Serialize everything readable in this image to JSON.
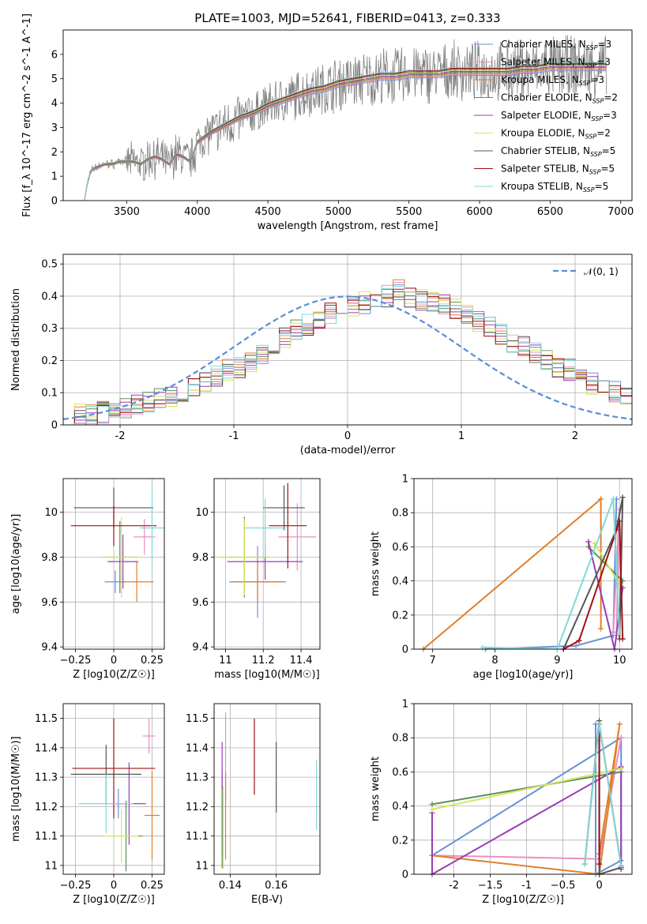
{
  "figure_title": "PLATE=1003, MJD=52641, FIBERID=0413, z=0.333",
  "chart_data": [
    {
      "id": "spectrum",
      "type": "line",
      "title": "PLATE=1003, MJD=52641, FIBERID=0413, z=0.333",
      "xlabel": "wavelength [Angstrom, rest frame]",
      "ylabel": "Flux [f_λ 10^-17 erg cm^-2 s^-1 A^-1]",
      "xlim": [
        3050,
        7080
      ],
      "ylim": [
        0,
        7
      ],
      "xticks": [
        3500,
        4000,
        4500,
        5000,
        5500,
        6000,
        6500,
        7000
      ],
      "yticks": [
        0,
        1,
        2,
        3,
        4,
        5,
        6
      ],
      "grid": false,
      "legend_position": "right",
      "data_color": "#808080",
      "continuum_x": [
        3200,
        3230,
        3260,
        3300,
        3350,
        3400,
        3450,
        3500,
        3550,
        3600,
        3650,
        3700,
        3750,
        3800,
        3850,
        3900,
        3950,
        4000,
        4100,
        4200,
        4300,
        4400,
        4500,
        4600,
        4700,
        4800,
        4900,
        5000,
        5100,
        5200,
        5300,
        5400,
        5500,
        5600,
        5700,
        5800,
        5900,
        6000,
        6100,
        6200,
        6300,
        6400,
        6500,
        6600,
        6700,
        6800,
        6900
      ],
      "continuum_y": [
        0.0,
        1.0,
        1.3,
        1.4,
        1.5,
        1.5,
        1.6,
        1.6,
        1.6,
        1.5,
        1.7,
        1.8,
        1.7,
        1.5,
        1.9,
        1.8,
        1.6,
        2.4,
        2.8,
        3.1,
        3.4,
        3.6,
        3.9,
        4.1,
        4.3,
        4.5,
        4.6,
        4.8,
        4.9,
        5.0,
        5.1,
        5.1,
        5.2,
        5.2,
        5.2,
        5.3,
        5.3,
        5.3,
        5.3,
        5.3,
        5.4,
        5.4,
        5.5,
        5.5,
        5.5,
        5.5,
        5.5
      ],
      "series": [
        {
          "name": "Chabrier MILES, N_SSP=3",
          "color": "#6a8fd5"
        },
        {
          "name": "Salpeter MILES, N_SSP=3",
          "color": "#e88fc4"
        },
        {
          "name": "Kroupa MILES, N_SSP=3",
          "color": "#e07f2b"
        },
        {
          "name": "Chabrier ELODIE, N_SSP=2",
          "color": "#5a8f5a"
        },
        {
          "name": "Salpeter ELODIE, N_SSP=3",
          "color": "#9b3db3"
        },
        {
          "name": "Kroupa ELODIE, N_SSP=2",
          "color": "#d6e55a"
        },
        {
          "name": "Chabrier STELIB, N_SSP=5",
          "color": "#555555"
        },
        {
          "name": "Salpeter STELIB, N_SSP=5",
          "color": "#a01010"
        },
        {
          "name": "Kroupa STELIB, N_SSP=5",
          "color": "#80d8d8"
        }
      ]
    },
    {
      "id": "residuals",
      "type": "line",
      "xlabel": "(data-model)/error",
      "ylabel": "Normed distribution",
      "xlim": [
        -2.5,
        2.5
      ],
      "ylim": [
        0,
        0.53
      ],
      "xticks": [
        -2,
        -1,
        0,
        1,
        2
      ],
      "yticks": [
        0.0,
        0.1,
        0.2,
        0.3,
        0.4,
        0.5
      ],
      "grid": true,
      "legend_position": "top-right",
      "normal_label": "𝒩(0, 1)",
      "normal_color": "#5b8dd6",
      "bin_edges_start": -2.5,
      "bin_width": 0.1,
      "hist_values": [
        0.02,
        0.03,
        0.03,
        0.04,
        0.04,
        0.05,
        0.06,
        0.07,
        0.08,
        0.09,
        0.1,
        0.11,
        0.13,
        0.15,
        0.17,
        0.18,
        0.2,
        0.22,
        0.25,
        0.27,
        0.3,
        0.31,
        0.33,
        0.35,
        0.36,
        0.37,
        0.38,
        0.39,
        0.4,
        0.42,
        0.4,
        0.39,
        0.38,
        0.37,
        0.36,
        0.34,
        0.32,
        0.3,
        0.28,
        0.26,
        0.24,
        0.22,
        0.2,
        0.18,
        0.17,
        0.15,
        0.13,
        0.12,
        0.1,
        0.09
      ]
    },
    {
      "id": "age_vs_Z",
      "type": "scatter",
      "xlabel": "Z [log10(Z/Z☉)]",
      "ylabel": "age [log10(age/yr)]",
      "xlim": [
        -0.33,
        0.33
      ],
      "ylim": [
        9.39,
        10.15
      ],
      "xticks": [
        -0.25,
        0.0,
        0.25
      ],
      "yticks": [
        9.4,
        9.6,
        9.8,
        10.0
      ],
      "grid": true,
      "points": [
        {
          "x": 0.01,
          "y": 9.69,
          "xerr": 0.07,
          "yerr": 0.05,
          "color": "#6a8fd5"
        },
        {
          "x": 0.2,
          "y": 9.89,
          "xerr": 0.07,
          "yerr": 0.08,
          "color": "#e88fc4"
        },
        {
          "x": 0.15,
          "y": 9.69,
          "xerr": 0.11,
          "yerr": 0.09,
          "color": "#e07f2b"
        },
        {
          "x": 0.04,
          "y": 9.8,
          "xerr": 0.12,
          "yerr": 0.16,
          "color": "#5a8f5a"
        },
        {
          "x": 0.06,
          "y": 9.78,
          "xerr": 0.1,
          "yerr": 0.12,
          "color": "#9b3db3"
        },
        {
          "x": 0.05,
          "y": 9.8,
          "xerr": 0.13,
          "yerr": 0.18,
          "color": "#d6e55a"
        },
        {
          "x": 0.0,
          "y": 10.02,
          "xerr": 0.26,
          "yerr": 0.09,
          "color": "#555555"
        },
        {
          "x": 0.0,
          "y": 9.94,
          "xerr": 0.28,
          "yerr": 0.09,
          "color": "#a01010"
        },
        {
          "x": 0.25,
          "y": 9.93,
          "xerr": 0.08,
          "yerr": 0.2,
          "color": "#80d8d8"
        }
      ]
    },
    {
      "id": "age_vs_mass",
      "type": "scatter",
      "xlabel": "mass [log10(M/M☉)]",
      "xlim": [
        10.94,
        11.5
      ],
      "ylim": [
        9.39,
        10.15
      ],
      "xticks": [
        11.0,
        11.2,
        11.4
      ],
      "yticks": [
        9.4,
        9.6,
        9.8,
        10.0
      ],
      "grid": true,
      "points": [
        {
          "x": 11.17,
          "y": 9.69,
          "xerr": 0.15,
          "yerr": 0.16,
          "color": "#6a8fd5"
        },
        {
          "x": 11.38,
          "y": 9.89,
          "xerr": 0.1,
          "yerr": 0.15,
          "color": "#e88fc4"
        },
        {
          "x": 11.17,
          "y": 9.69,
          "xerr": 0.13,
          "yerr": 0.09,
          "color": "#e07f2b"
        },
        {
          "x": 11.1,
          "y": 9.8,
          "xerr": 0.13,
          "yerr": 0.18,
          "color": "#5a8f5a"
        },
        {
          "x": 11.21,
          "y": 9.78,
          "xerr": 0.2,
          "yerr": 0.08,
          "color": "#9b3db3"
        },
        {
          "x": 11.1,
          "y": 9.8,
          "xerr": 0.16,
          "yerr": 0.17,
          "color": "#d6e55a"
        },
        {
          "x": 11.31,
          "y": 10.02,
          "xerr": 0.11,
          "yerr": 0.1,
          "color": "#555555"
        },
        {
          "x": 11.33,
          "y": 9.94,
          "xerr": 0.1,
          "yerr": 0.19,
          "color": "#a01010"
        },
        {
          "x": 11.21,
          "y": 9.93,
          "xerr": 0.11,
          "yerr": 0.13,
          "color": "#80d8d8"
        }
      ]
    },
    {
      "id": "massweight_vs_age",
      "type": "line",
      "xlabel": "age [log10(age/yr)]",
      "ylabel": "mass weight",
      "xlim": [
        6.7,
        10.2
      ],
      "ylim": [
        0,
        1.0
      ],
      "xticks": [
        7,
        8,
        9,
        10
      ],
      "yticks": [
        0.0,
        0.2,
        0.4,
        0.6,
        0.8,
        1.0
      ],
      "grid": true,
      "series": [
        {
          "color": "#6a8fd5",
          "x": [
            7.85,
            9.3,
            9.9,
            9.95
          ],
          "y": [
            0.0,
            0.02,
            0.08,
            0.88
          ]
        },
        {
          "color": "#e88fc4",
          "x": [
            9.9,
            10.0,
            9.95
          ],
          "y": [
            0.1,
            0.82,
            0.08
          ]
        },
        {
          "color": "#e07f2b",
          "x": [
            6.85,
            9.7,
            9.7
          ],
          "y": [
            0.0,
            0.88,
            0.12
          ]
        },
        {
          "color": "#5a8f5a",
          "x": [
            9.5,
            10.05
          ],
          "y": [
            0.6,
            0.4
          ]
        },
        {
          "color": "#9b3db3",
          "x": [
            9.5,
            9.92,
            10.05
          ],
          "y": [
            0.63,
            0.0,
            0.36
          ]
        },
        {
          "color": "#d6e55a",
          "x": [
            9.6,
            10.0
          ],
          "y": [
            0.62,
            0.38
          ]
        },
        {
          "color": "#555555",
          "x": [
            9.1,
            9.95,
            10.05,
            10.0
          ],
          "y": [
            0.0,
            0.7,
            0.89,
            0.06
          ]
        },
        {
          "color": "#a01010",
          "x": [
            9.1,
            9.35,
            10.0,
            10.05
          ],
          "y": [
            0.0,
            0.05,
            0.75,
            0.06
          ]
        },
        {
          "color": "#80d8d8",
          "x": [
            7.8,
            9.0,
            9.9,
            10.0
          ],
          "y": [
            0.01,
            0.0,
            0.88,
            0.1
          ]
        }
      ]
    },
    {
      "id": "mass_vs_Z",
      "type": "scatter",
      "xlabel": "Z [log10(Z/Z☉)]",
      "ylabel": "mass [log10(M/M☉)]",
      "xlim": [
        -0.33,
        0.33
      ],
      "ylim": [
        10.97,
        11.55
      ],
      "xticks": [
        -0.25,
        0.0,
        0.25
      ],
      "yticks": [
        11.0,
        11.1,
        11.2,
        11.3,
        11.4,
        11.5
      ],
      "grid": true,
      "points": [
        {
          "x": 0.03,
          "y": 11.21,
          "xerr": 0.04,
          "yerr": 0.05,
          "color": "#6a8fd5"
        },
        {
          "x": 0.23,
          "y": 11.44,
          "xerr": 0.04,
          "yerr": 0.06,
          "color": "#e88fc4"
        },
        {
          "x": 0.25,
          "y": 11.17,
          "xerr": 0.05,
          "yerr": 0.15,
          "color": "#e07f2b"
        },
        {
          "x": 0.08,
          "y": 11.1,
          "xerr": 0.11,
          "yerr": 0.12,
          "color": "#5a8f5a"
        },
        {
          "x": 0.1,
          "y": 11.21,
          "xerr": 0.11,
          "yerr": 0.14,
          "color": "#9b3db3"
        },
        {
          "x": 0.05,
          "y": 11.1,
          "xerr": 0.11,
          "yerr": 0.09,
          "color": "#d6e55a"
        },
        {
          "x": -0.05,
          "y": 11.31,
          "xerr": 0.23,
          "yerr": 0.1,
          "color": "#555555"
        },
        {
          "x": 0.0,
          "y": 11.33,
          "xerr": 0.27,
          "yerr": 0.17,
          "color": "#a01010"
        },
        {
          "x": -0.05,
          "y": 11.21,
          "xerr": 0.18,
          "yerr": 0.1,
          "color": "#80d8d8"
        }
      ]
    },
    {
      "id": "mass_vs_EBV",
      "type": "scatter",
      "xlabel": "E(B-V)",
      "xlim": [
        0.133,
        0.179
      ],
      "ylim": [
        10.97,
        11.55
      ],
      "xticks": [
        0.14,
        0.16
      ],
      "yticks": [
        11.0,
        11.1,
        11.2,
        11.3,
        11.4,
        11.5
      ],
      "grid": true,
      "points": [
        {
          "x": 0.1365,
          "y": 11.17,
          "yerr": 0.14,
          "color": "#6a8fd5"
        },
        {
          "x": 0.138,
          "y": 11.37,
          "yerr": 0.15,
          "color": "#e88fc4"
        },
        {
          "x": 0.138,
          "y": 11.17,
          "yerr": 0.15,
          "color": "#e07f2b"
        },
        {
          "x": 0.1365,
          "y": 11.13,
          "yerr": 0.14,
          "color": "#5a8f5a"
        },
        {
          "x": 0.1365,
          "y": 11.34,
          "yerr": 0.08,
          "color": "#9b3db3"
        },
        {
          "x": 0.137,
          "y": 11.13,
          "yerr": 0.14,
          "color": "#d6e55a"
        },
        {
          "x": 0.16,
          "y": 11.3,
          "yerr": 0.12,
          "color": "#555555"
        },
        {
          "x": 0.1505,
          "y": 11.37,
          "yerr": 0.13,
          "color": "#a01010"
        },
        {
          "x": 0.1775,
          "y": 11.24,
          "yerr": 0.12,
          "color": "#80d8d8"
        }
      ]
    },
    {
      "id": "massweight_vs_Z",
      "type": "line",
      "xlabel": "Z [log10(Z/Z☉)]",
      "ylabel": "mass weight",
      "xlim": [
        -2.55,
        0.45
      ],
      "ylim": [
        0,
        1.0
      ],
      "xticks": [
        -2.0,
        -1.5,
        -1.0,
        -0.5,
        0.0
      ],
      "yticks": [
        0.0,
        0.2,
        0.4,
        0.6,
        0.8,
        1.0
      ],
      "grid": true,
      "series": [
        {
          "color": "#6a8fd5",
          "x": [
            -2.3,
            0.3,
            0.3,
            -0.05,
            -0.05
          ],
          "y": [
            0.11,
            0.8,
            0.08,
            0.0,
            0.88
          ]
        },
        {
          "color": "#e88fc4",
          "x": [
            -2.3,
            0.0,
            0.3
          ],
          "y": [
            0.11,
            0.09,
            0.8
          ]
        },
        {
          "color": "#e07f2b",
          "x": [
            -2.3,
            0.0,
            0.28,
            0.0
          ],
          "y": [
            0.11,
            0.0,
            0.88,
            0.12
          ]
        },
        {
          "color": "#5a8f5a",
          "x": [
            -2.3,
            0.3
          ],
          "y": [
            0.41,
            0.6
          ]
        },
        {
          "color": "#9b3db3",
          "x": [
            -2.3,
            -2.3,
            0.3,
            0.3
          ],
          "y": [
            0.36,
            0.0,
            0.63,
            0.03
          ]
        },
        {
          "color": "#d6e55a",
          "x": [
            -2.3,
            0.3
          ],
          "y": [
            0.38,
            0.62
          ]
        },
        {
          "color": "#555555",
          "x": [
            -0.2,
            0.0,
            0.0,
            0.3
          ],
          "y": [
            0.06,
            0.9,
            0.0,
            0.04
          ]
        },
        {
          "color": "#a01010",
          "x": [
            0.0,
            0.0,
            0.3
          ],
          "y": [
            0.06,
            0.88,
            0.05
          ]
        },
        {
          "color": "#80d8d8",
          "x": [
            -0.2,
            0.0,
            0.3
          ],
          "y": [
            0.06,
            0.88,
            0.05
          ]
        }
      ]
    }
  ]
}
